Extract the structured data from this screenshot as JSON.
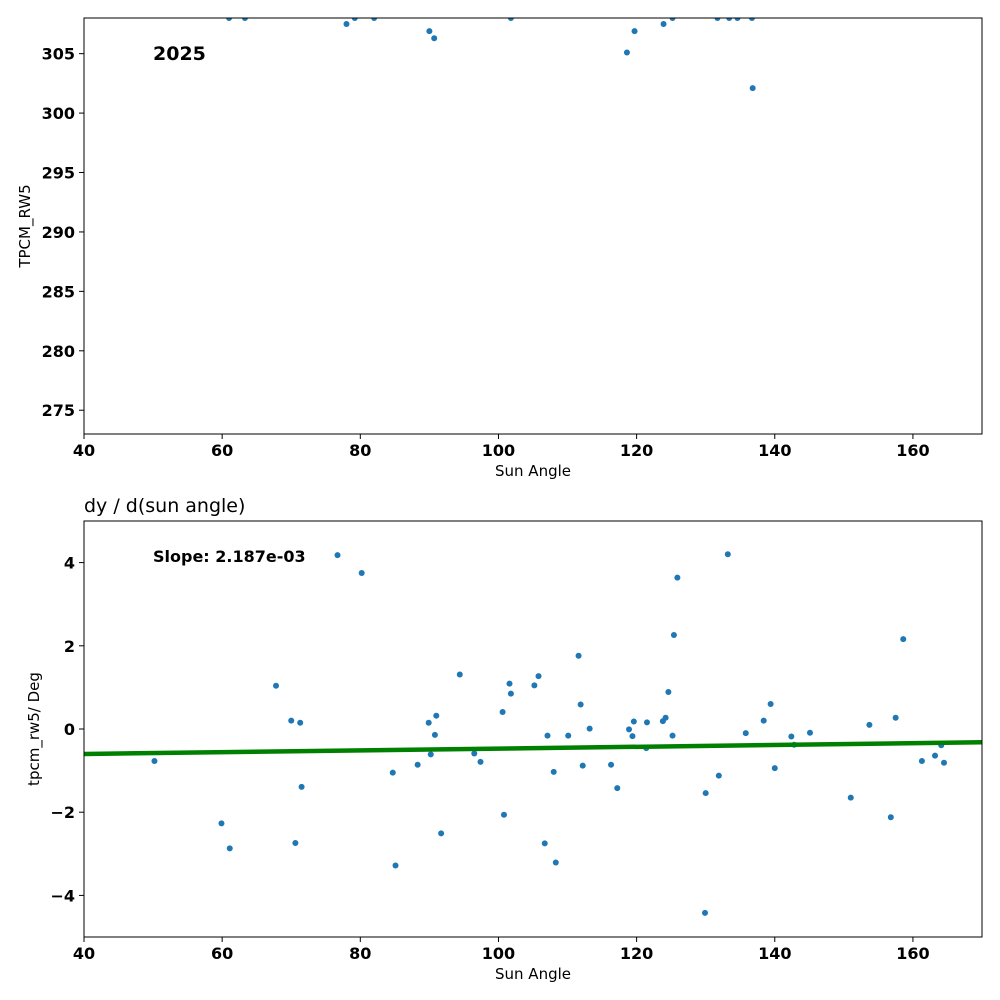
{
  "chart_data": [
    {
      "type": "scatter",
      "title": "",
      "xlabel": "Sun Angle",
      "ylabel": "TPCM_RW5",
      "xlim": [
        40,
        170
      ],
      "ylim": [
        273,
        308
      ],
      "xticks": [
        40,
        60,
        80,
        100,
        120,
        140,
        160
      ],
      "yticks": [
        275,
        280,
        285,
        290,
        295,
        300,
        305
      ],
      "grid": false,
      "annotation": "2025",
      "marker_color": "#1f77b4",
      "series": [
        {
          "x": [
            61,
            63.3,
            78,
            79.2,
            82,
            90,
            90.7,
            101.8,
            118.6,
            119.7,
            123.9,
            125.2,
            131.7,
            133.4,
            134.6,
            136.7,
            136.8
          ],
          "y": [
            308,
            308,
            307.5,
            308,
            308,
            306.9,
            306.3,
            308,
            305.1,
            306.9,
            307.5,
            308,
            308,
            308,
            308,
            308,
            302.1
          ]
        }
      ]
    },
    {
      "type": "scatter",
      "title": "dy / d(sun angle)",
      "xlabel": "Sun Angle",
      "ylabel": "tpcm_rw5/ Deg",
      "xlim": [
        40,
        170
      ],
      "ylim": [
        -5,
        5
      ],
      "xticks": [
        40,
        60,
        80,
        100,
        120,
        140,
        160
      ],
      "yticks": [
        -4,
        -2,
        0,
        2,
        4
      ],
      "grid": false,
      "annotation": "Slope: 2.187e-03",
      "marker_color": "#1f77b4",
      "fit_color": "#008000",
      "fit_line": {
        "x": [
          40,
          170
        ],
        "y": [
          -0.6,
          -0.32
        ]
      },
      "series": [
        {
          "x": [
            50.2,
            59.9,
            61.1,
            67.8,
            70,
            70.6,
            71.3,
            71.5,
            76.7,
            80.2,
            84.7,
            85.1,
            88.3,
            89.9,
            90.2,
            90.8,
            91,
            91.7,
            94.4,
            96.5,
            97.4,
            100.6,
            100.8,
            101.6,
            101.8,
            105.2,
            105.8,
            106.7,
            107.1,
            108,
            108.3,
            110.1,
            111.6,
            111.9,
            112.2,
            113.2,
            116.3,
            117.2,
            118.9,
            119.4,
            119.6,
            121.4,
            121.5,
            123.8,
            124.2,
            124.6,
            125.2,
            125.4,
            125.9,
            129.9,
            130,
            131.9,
            133.2,
            135.8,
            138.4,
            139.4,
            140,
            142.4,
            142.8,
            145.1,
            151,
            153.7,
            156.8,
            157.5,
            158.6,
            161.3,
            163.2,
            164.1,
            164.5
          ],
          "y": [
            -0.77,
            -2.27,
            -2.87,
            1.04,
            0.2,
            -2.74,
            0.15,
            -1.39,
            4.18,
            3.75,
            -1.05,
            -3.28,
            -0.86,
            0.15,
            -0.61,
            -0.14,
            0.32,
            -2.51,
            1.31,
            -0.59,
            -0.79,
            0.41,
            -2.06,
            1.09,
            0.85,
            1.05,
            1.27,
            -2.75,
            -0.16,
            -1.03,
            -3.21,
            -0.16,
            1.76,
            0.59,
            -0.88,
            0.01,
            -0.86,
            -1.42,
            -0.01,
            -0.17,
            0.18,
            -0.46,
            0.16,
            0.19,
            0.27,
            0.89,
            -0.16,
            2.26,
            3.64,
            -4.42,
            -1.54,
            -1.12,
            4.2,
            -0.1,
            0.2,
            0.6,
            -0.94,
            -0.18,
            -0.38,
            -0.09,
            -1.65,
            0.1,
            -2.12,
            0.27,
            2.16,
            -0.77,
            -0.64,
            -0.39,
            -0.81
          ]
        }
      ]
    }
  ]
}
